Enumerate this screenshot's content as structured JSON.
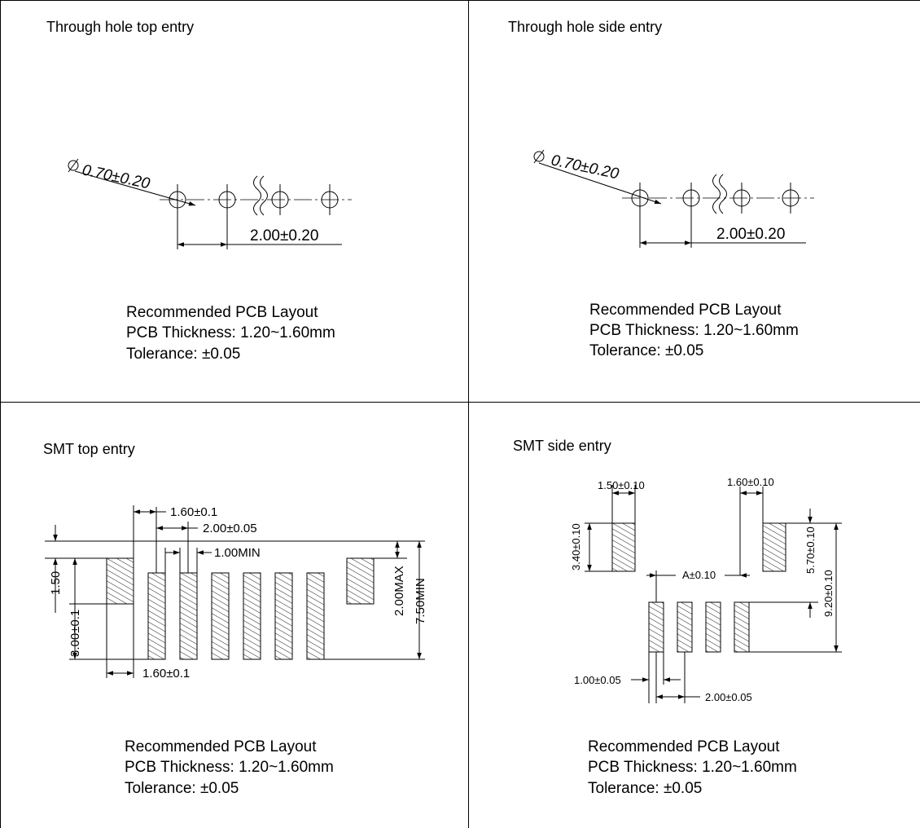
{
  "panels": {
    "tl": {
      "title": "Through hole top entry",
      "hole_dim": "0.70±0.20",
      "pitch_dim": "2.00±0.20",
      "caption": [
        "Recommended PCB Layout",
        "PCB Thickness: 1.20~1.60mm",
        "Tolerance: ±0.05"
      ]
    },
    "tr": {
      "title": "Through hole side entry",
      "hole_dim": "0.70±0.20",
      "pitch_dim": "2.00±0.20",
      "caption": [
        "Recommended PCB Layout",
        "PCB Thickness: 1.20~1.60mm",
        "Tolerance: ±0.05"
      ]
    },
    "bl": {
      "title": "SMT top entry",
      "dims": {
        "pad_width_top": "1.60±0.1",
        "pitch": "2.00±0.05",
        "gap": "1.00MIN",
        "height_small": "1.50",
        "height_side": "3.00±0.1",
        "pad_width_bottom": "1.60±0.1",
        "max_height": "2.00MAX",
        "min_length": "7.50MIN"
      },
      "caption": [
        "Recommended PCB Layout",
        "PCB Thickness: 1.20~1.60mm",
        "Tolerance: ±0.05"
      ]
    },
    "br": {
      "title": "SMT side entry",
      "dims": {
        "left_pad_width": "1.50±0.10",
        "right_pad_width": "1.60±0.10",
        "left_pad_height": "3.40±0.10",
        "span": "A±0.10",
        "offset": "5.70±0.10",
        "total": "9.20±0.10",
        "signal_width": "1.00±0.05",
        "pitch": "2.00±0.05"
      },
      "caption": [
        "Recommended PCB Layout",
        "PCB Thickness: 1.20~1.60mm",
        "Tolerance: ±0.05"
      ]
    }
  }
}
